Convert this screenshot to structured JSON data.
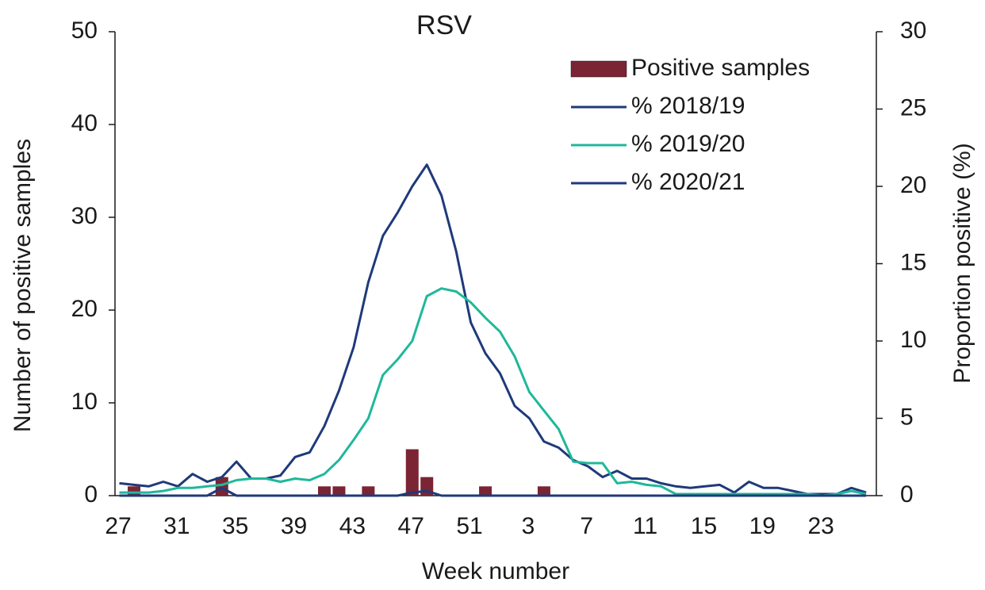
{
  "chart_data": {
    "type": "combo",
    "title": "RSV",
    "x_label": "Week number",
    "y_label": "Number of positive samples",
    "y2_label": "Proportion positive (%)",
    "categories": [
      "27",
      null,
      null,
      null,
      "31",
      null,
      null,
      null,
      "35",
      null,
      null,
      null,
      "39",
      null,
      null,
      null,
      "43",
      null,
      null,
      null,
      "47",
      null,
      null,
      null,
      "51",
      null,
      null,
      null,
      "3",
      null,
      null,
      null,
      "7",
      null,
      null,
      null,
      "11",
      null,
      null,
      null,
      "15",
      null,
      null,
      null,
      "19",
      null,
      null,
      null,
      "23",
      null,
      null,
      null
    ],
    "ylim": [
      0,
      50
    ],
    "yticks": [
      0,
      10,
      20,
      30,
      40,
      50
    ],
    "y2lim": [
      0,
      30
    ],
    "y2ticks": [
      0,
      5,
      10,
      15,
      20,
      25,
      30
    ],
    "legend": "top-right",
    "series": [
      {
        "name": "Positive samples",
        "type": "bar",
        "color": "#7b2433",
        "values": [
          0,
          1,
          0,
          0,
          0,
          0,
          0,
          2,
          0,
          0,
          0,
          0,
          0,
          0,
          1,
          1,
          0,
          1,
          0,
          0,
          5,
          2,
          0,
          0,
          0,
          1,
          0,
          0,
          0,
          1,
          0,
          0,
          0,
          0,
          0,
          0,
          0,
          0,
          0,
          0,
          0,
          0,
          0,
          0,
          0,
          0,
          0,
          0,
          0,
          0,
          0,
          0
        ]
      },
      {
        "name": "% 2018/19",
        "type": "line",
        "axis": "y2",
        "color": "#1f3a7a",
        "values": [
          0.8,
          0.7,
          0.6,
          0.9,
          0.6,
          1.4,
          0.9,
          1.2,
          2.2,
          1.1,
          1.1,
          1.3,
          2.5,
          2.8,
          4.5,
          6.8,
          9.6,
          13.8,
          16.8,
          18.3,
          20.0,
          21.4,
          19.4,
          15.8,
          11.2,
          9.2,
          7.9,
          5.8,
          5.0,
          3.5,
          3.1,
          2.3,
          1.9,
          1.2,
          1.6,
          1.1,
          1.1,
          0.8,
          0.6,
          0.5,
          0.6,
          0.7,
          0.2,
          0.9,
          0.5,
          0.5,
          0.3,
          0.1,
          0.1,
          0.1,
          0.5,
          0.2
        ]
      },
      {
        "name": "% 2019/20",
        "type": "line",
        "axis": "y2",
        "color": "#1fb89a",
        "values": [
          0.2,
          0.2,
          0.2,
          0.3,
          0.5,
          0.5,
          0.6,
          0.7,
          1.0,
          1.1,
          1.1,
          0.9,
          1.1,
          1.0,
          1.4,
          2.3,
          3.6,
          5.0,
          7.8,
          8.8,
          10.0,
          12.9,
          13.4,
          13.2,
          12.5,
          11.5,
          10.6,
          9.0,
          6.7,
          5.5,
          4.3,
          2.2,
          2.1,
          2.1,
          0.8,
          0.9,
          0.7,
          0.6,
          0.1,
          0.1,
          0.1,
          0.1,
          0.1,
          0.1,
          0.1,
          0.1,
          0.1,
          0.1,
          0,
          0.1,
          0.3,
          0.1
        ]
      },
      {
        "name": "% 2020/21",
        "type": "line",
        "axis": "y2",
        "color": "#1f3a7a",
        "values": [
          0,
          0,
          0,
          0,
          0,
          0,
          0,
          0.5,
          0,
          0,
          0,
          0,
          0,
          0,
          0,
          0,
          0,
          0,
          0,
          0,
          0.2,
          0.3,
          0,
          0,
          0,
          0,
          0,
          0,
          0,
          0,
          0,
          0,
          0,
          0,
          0,
          0,
          0,
          0,
          0,
          0,
          0,
          0,
          0,
          0,
          0,
          0,
          0,
          0,
          0,
          0,
          0,
          0
        ]
      }
    ]
  }
}
